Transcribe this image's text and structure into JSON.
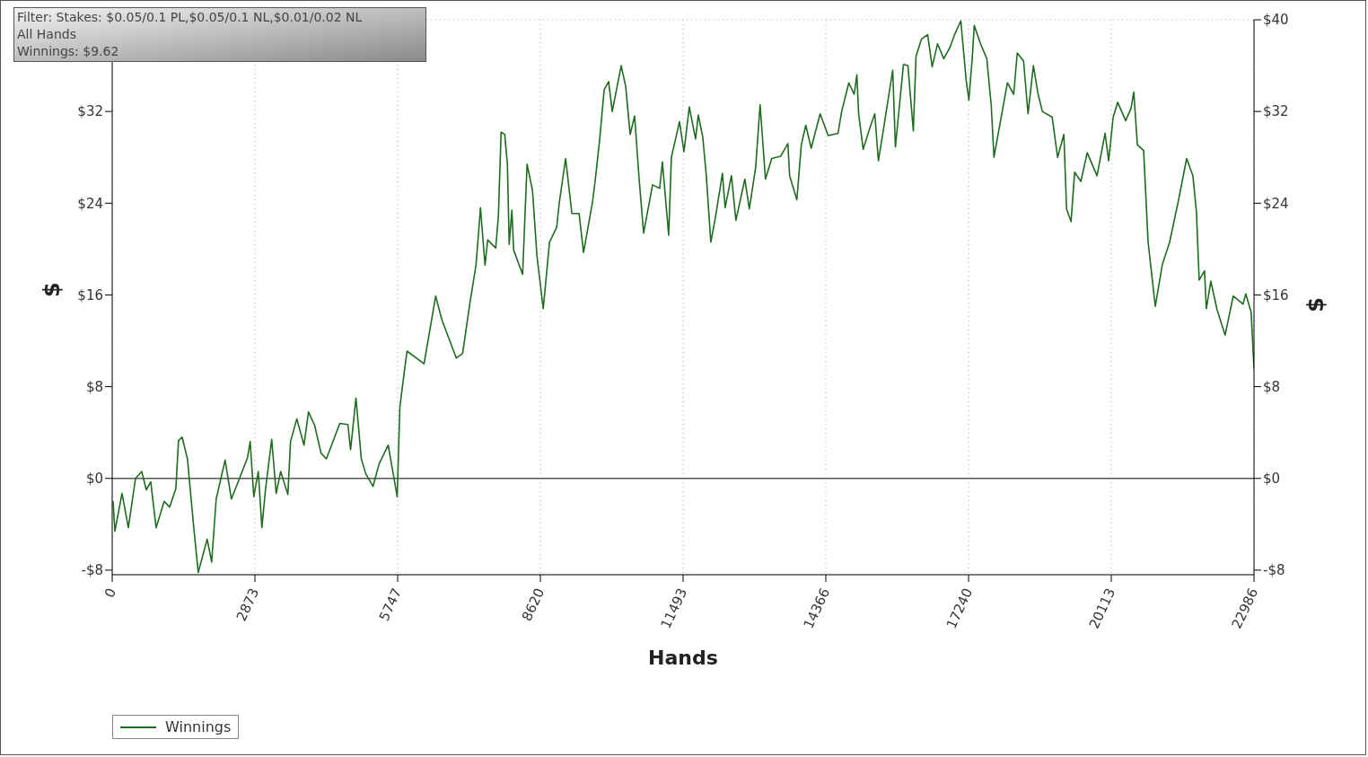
{
  "chart_data": {
    "type": "line",
    "annotations": [
      "Filter: Stakes: $0.05/0.1 PL,$0.05/0.1 NL,$0.01/0.02 NL",
      "All Hands",
      "Winnings: $9.62"
    ],
    "xlabel": "Hands",
    "ylabel": "$",
    "y2label": "$",
    "x": [
      18,
      54,
      198,
      325,
      469,
      595,
      686,
      776,
      884,
      1046,
      1155,
      1281,
      1335,
      1407,
      1515,
      1642,
      1732,
      1912,
      2002,
      2093,
      2273,
      2399,
      2580,
      2724,
      2778,
      2850,
      2941,
      3013,
      3085,
      3211,
      3301,
      3392,
      3536,
      3590,
      3716,
      3861,
      3951,
      4077,
      4204,
      4312,
      4582,
      4745,
      4799,
      4907,
      5015,
      5105,
      5250,
      5376,
      5556,
      5665,
      5737,
      5791,
      5845,
      5935,
      6278,
      6512,
      6639,
      6927,
      7054,
      7198,
      7324,
      7414,
      7505,
      7559,
      7721,
      7775,
      7829,
      7902,
      7956,
      7992,
      8046,
      8082,
      8262,
      8352,
      8461,
      8551,
      8677,
      8804,
      8948,
      9002,
      9128,
      9255,
      9399,
      9489,
      9669,
      9724,
      9814,
      9904,
      9994,
      10066,
      10247,
      10337,
      10427,
      10517,
      10608,
      10698,
      10878,
      11022,
      11076,
      11203,
      11257,
      11420,
      11510,
      11618,
      11744,
      11798,
      11888,
      11960,
      12051,
      12141,
      12285,
      12339,
      12466,
      12556,
      12736,
      12826,
      12953,
      13043,
      13151,
      13277,
      13458,
      13602,
      13638,
      13783,
      13873,
      13963,
      14071,
      14252,
      14414,
      14612,
      14685,
      14829,
      14937,
      14991,
      15027,
      15118,
      15262,
      15352,
      15424,
      15514,
      15713,
      15767,
      15929,
      16019,
      16128,
      16182,
      16290,
      16416,
      16507,
      16615,
      16741,
      16867,
      16958,
      17084,
      17192,
      17246,
      17318,
      17354,
      17481,
      17607,
      17697,
      17751,
      17896,
      18022,
      18148,
      18220,
      18347,
      18437,
      18545,
      18635,
      18726,
      18924,
      19032,
      19158,
      19213,
      19303,
      19375,
      19501,
      19628,
      19826,
      19988,
      20060,
      20151,
      20241,
      20403,
      20512,
      20566,
      20638,
      20764,
      20854,
      20999,
      21143,
      21287,
      21468,
      21630,
      21756,
      21828,
      21882,
      21990,
      22026,
      22117,
      22243,
      22405,
      22567,
      22766,
      22820,
      22928,
      22986
    ],
    "series": [
      {
        "name": "Winnings",
        "color": "#1f6b1f",
        "values": [
          -2.0,
          -4.6,
          -1.3,
          -4.3,
          0,
          0.6,
          -1.0,
          -0.3,
          -4.3,
          -2.0,
          -2.5,
          -0.9,
          3.3,
          3.6,
          1.7,
          -4.3,
          -8.2,
          -5.3,
          -7.3,
          -1.8,
          1.6,
          -1.8,
          0.2,
          1.8,
          3.2,
          -1.6,
          0.6,
          -4.3,
          -1.0,
          3.4,
          -1.3,
          0.6,
          -1.4,
          3.2,
          5.2,
          2.9,
          5.8,
          4.6,
          2.2,
          1.7,
          4.8,
          4.7,
          2.5,
          7.0,
          1.7,
          0.4,
          -0.7,
          1.3,
          2.9,
          0.2,
          -1.6,
          6.2,
          8.1,
          11.1,
          10.0,
          15.9,
          13.8,
          10.5,
          10.9,
          15.2,
          18.6,
          23.6,
          18.6,
          20.8,
          20.1,
          22.9,
          30.2,
          30.0,
          27.4,
          20.4,
          23.4,
          19.9,
          17.8,
          27.4,
          25.1,
          19.4,
          14.8,
          20.6,
          21.9,
          24.1,
          27.9,
          23.1,
          23.1,
          19.7,
          24.1,
          26.0,
          29.6,
          33.9,
          34.6,
          32.0,
          36.0,
          34.2,
          30.0,
          31.6,
          26.1,
          21.4,
          25.6,
          25.3,
          27.6,
          21.2,
          28.0,
          31.1,
          28.5,
          32.4,
          29.6,
          31.7,
          29.8,
          26.4,
          20.6,
          22.7,
          26.6,
          23.6,
          26.4,
          22.5,
          26.1,
          23.5,
          27.1,
          32.6,
          26.1,
          27.9,
          28.1,
          29.2,
          26.4,
          24.3,
          29.1,
          30.8,
          28.8,
          31.8,
          29.9,
          30.1,
          32.0,
          34.5,
          33.5,
          35.2,
          31.8,
          28.7,
          30.7,
          31.8,
          27.7,
          30.1,
          35.6,
          28.9,
          36.1,
          36.0,
          30.3,
          36.8,
          38.3,
          38.7,
          35.9,
          37.9,
          36.6,
          37.6,
          38.7,
          39.9,
          34.7,
          33.0,
          36.9,
          39.5,
          37.9,
          36.6,
          32.5,
          28.0,
          31.5,
          34.5,
          33.5,
          37.1,
          36.4,
          31.8,
          36.0,
          33.6,
          32.0,
          31.5,
          28.0,
          30.0,
          23.5,
          22.4,
          26.7,
          25.9,
          28.4,
          26.4,
          30.1,
          27.7,
          31.5,
          32.8,
          31.2,
          32.3,
          33.7,
          29.1,
          28.6,
          20.6,
          15.0,
          18.7,
          20.6,
          24.3,
          27.9,
          26.4,
          23.2,
          17.3,
          18.1,
          14.8,
          17.2,
          14.7,
          12.5,
          15.9,
          15.2,
          16.1,
          14.5,
          9.62
        ]
      }
    ],
    "xlim": [
      0,
      22986
    ],
    "xticks": [
      0,
      2873,
      5747,
      8620,
      11493,
      14366,
      17240,
      20113,
      22986
    ],
    "ylim": [
      -8.4,
      40
    ],
    "yticks": [
      {
        "value": -8,
        "label": "-$8"
      },
      {
        "value": 0,
        "label": "$0"
      },
      {
        "value": 8,
        "label": "$8"
      },
      {
        "value": 16,
        "label": "$16"
      },
      {
        "value": 24,
        "label": "$24"
      },
      {
        "value": 32,
        "label": "$32"
      },
      {
        "value": 40,
        "label": null
      }
    ],
    "y2lim": [
      -8.4,
      40
    ],
    "y2ticks": [
      {
        "value": -8,
        "label": "-$8"
      },
      {
        "value": 0,
        "label": "$0"
      },
      {
        "value": 8,
        "label": "$8"
      },
      {
        "value": 16,
        "label": "$16"
      },
      {
        "value": 24,
        "label": "$24"
      },
      {
        "value": 32,
        "label": "$32"
      },
      {
        "value": 40,
        "label": "$40"
      }
    ],
    "ref_lines": [
      {
        "axis": "y",
        "value": 0,
        "color": "#555555"
      }
    ],
    "grid": true,
    "legend": "bottom left"
  }
}
